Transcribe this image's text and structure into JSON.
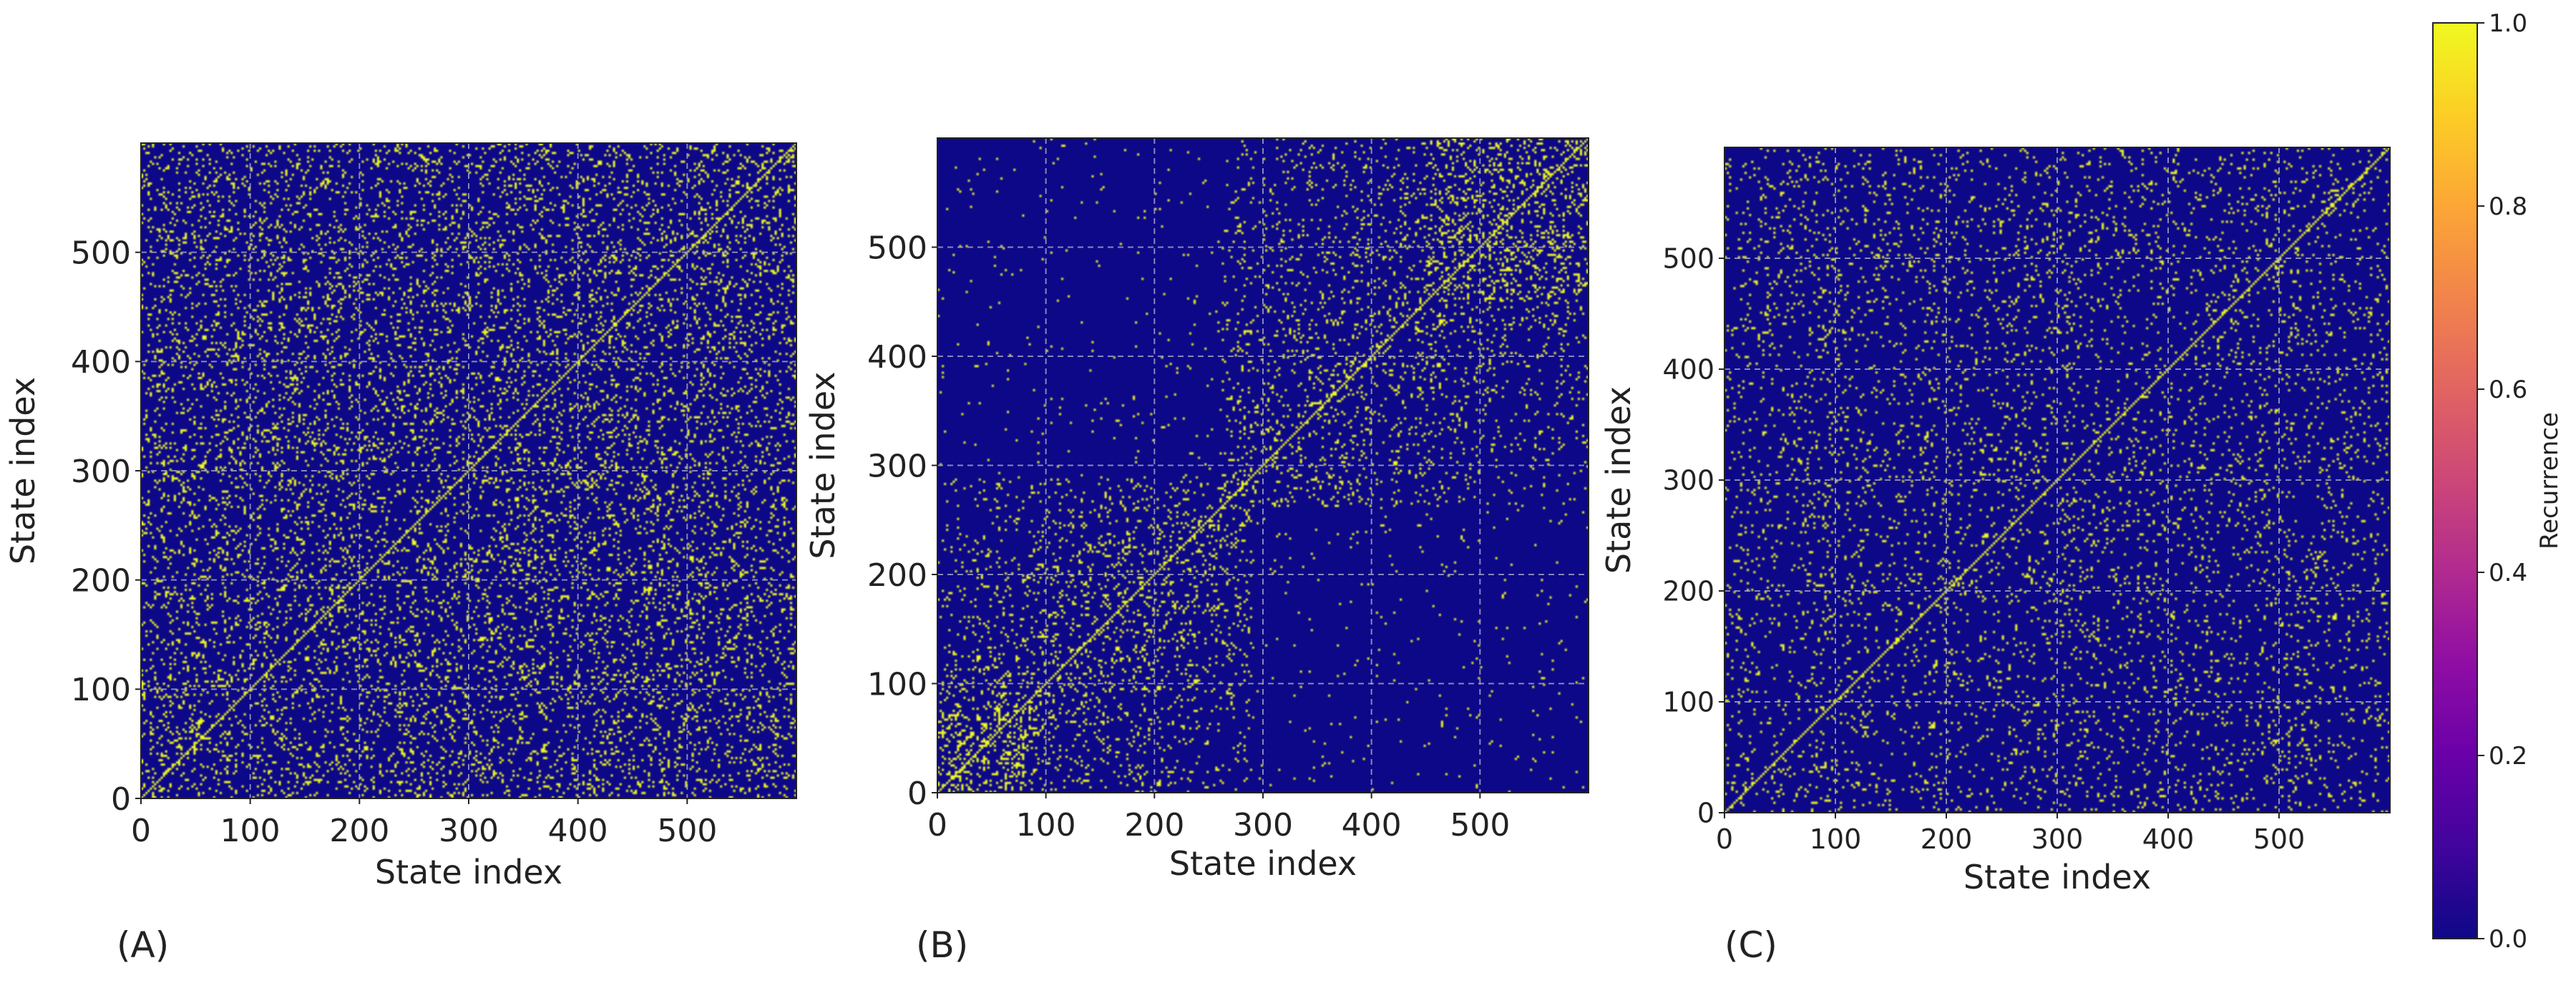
{
  "figure": {
    "panel_labels": [
      "(A)",
      "(B)",
      "(C)"
    ],
    "colorbar": {
      "label": "Recurrence",
      "ticks": [
        "0.0",
        "0.2",
        "0.4",
        "0.6",
        "0.8",
        "1.0"
      ],
      "tick_values": [
        0.0,
        0.2,
        0.4,
        0.6,
        0.8,
        1.0
      ],
      "colormap": "plasma",
      "range": [
        0.0,
        1.0
      ]
    }
  },
  "colors": {
    "low": "#0d0887",
    "high": "#f0f921",
    "grid_line": "#a7a7c8"
  },
  "chart_data": [
    {
      "type": "heatmap",
      "title": "",
      "xlabel": "State index",
      "ylabel": "State index",
      "xlim": [
        0,
        600
      ],
      "ylim": [
        0,
        600
      ],
      "xticks": [
        0,
        100,
        200,
        300,
        400,
        500
      ],
      "yticks": [
        0,
        100,
        200,
        300,
        400,
        500
      ],
      "matrix_size": 600,
      "values": "binary recurrence matrix (0 = no recurrence, 1 = recurrence)",
      "recurrence_density": 0.12,
      "structure": "uniform noise-like recurrence with bright main diagonal",
      "grid": true
    },
    {
      "type": "heatmap",
      "title": "",
      "xlabel": "State index",
      "ylabel": "State index",
      "xlim": [
        0,
        600
      ],
      "ylim": [
        0,
        600
      ],
      "xticks": [
        0,
        100,
        200,
        300,
        400,
        500
      ],
      "yticks": [
        0,
        100,
        200,
        300,
        400,
        500
      ],
      "matrix_size": 600,
      "values": "binary recurrence matrix (0 = no recurrence, 1 = recurrence)",
      "recurrence_density": 0.09,
      "structure": "block recurrence: dense blocks around 0-280 and 280-600 along the diagonal, sparse off-diagonal",
      "grid": true
    },
    {
      "type": "heatmap",
      "title": "",
      "xlabel": "State index",
      "ylabel": "State index",
      "xlim": [
        0,
        600
      ],
      "ylim": [
        0,
        600
      ],
      "xticks": [
        0,
        100,
        200,
        300,
        400,
        500
      ],
      "yticks": [
        0,
        100,
        200,
        300,
        400,
        500
      ],
      "matrix_size": 600,
      "values": "binary recurrence matrix (0 = no recurrence, 1 = recurrence)",
      "recurrence_density": 0.07,
      "structure": "uniform sparse recurrence with bright main diagonal",
      "grid": true
    }
  ]
}
